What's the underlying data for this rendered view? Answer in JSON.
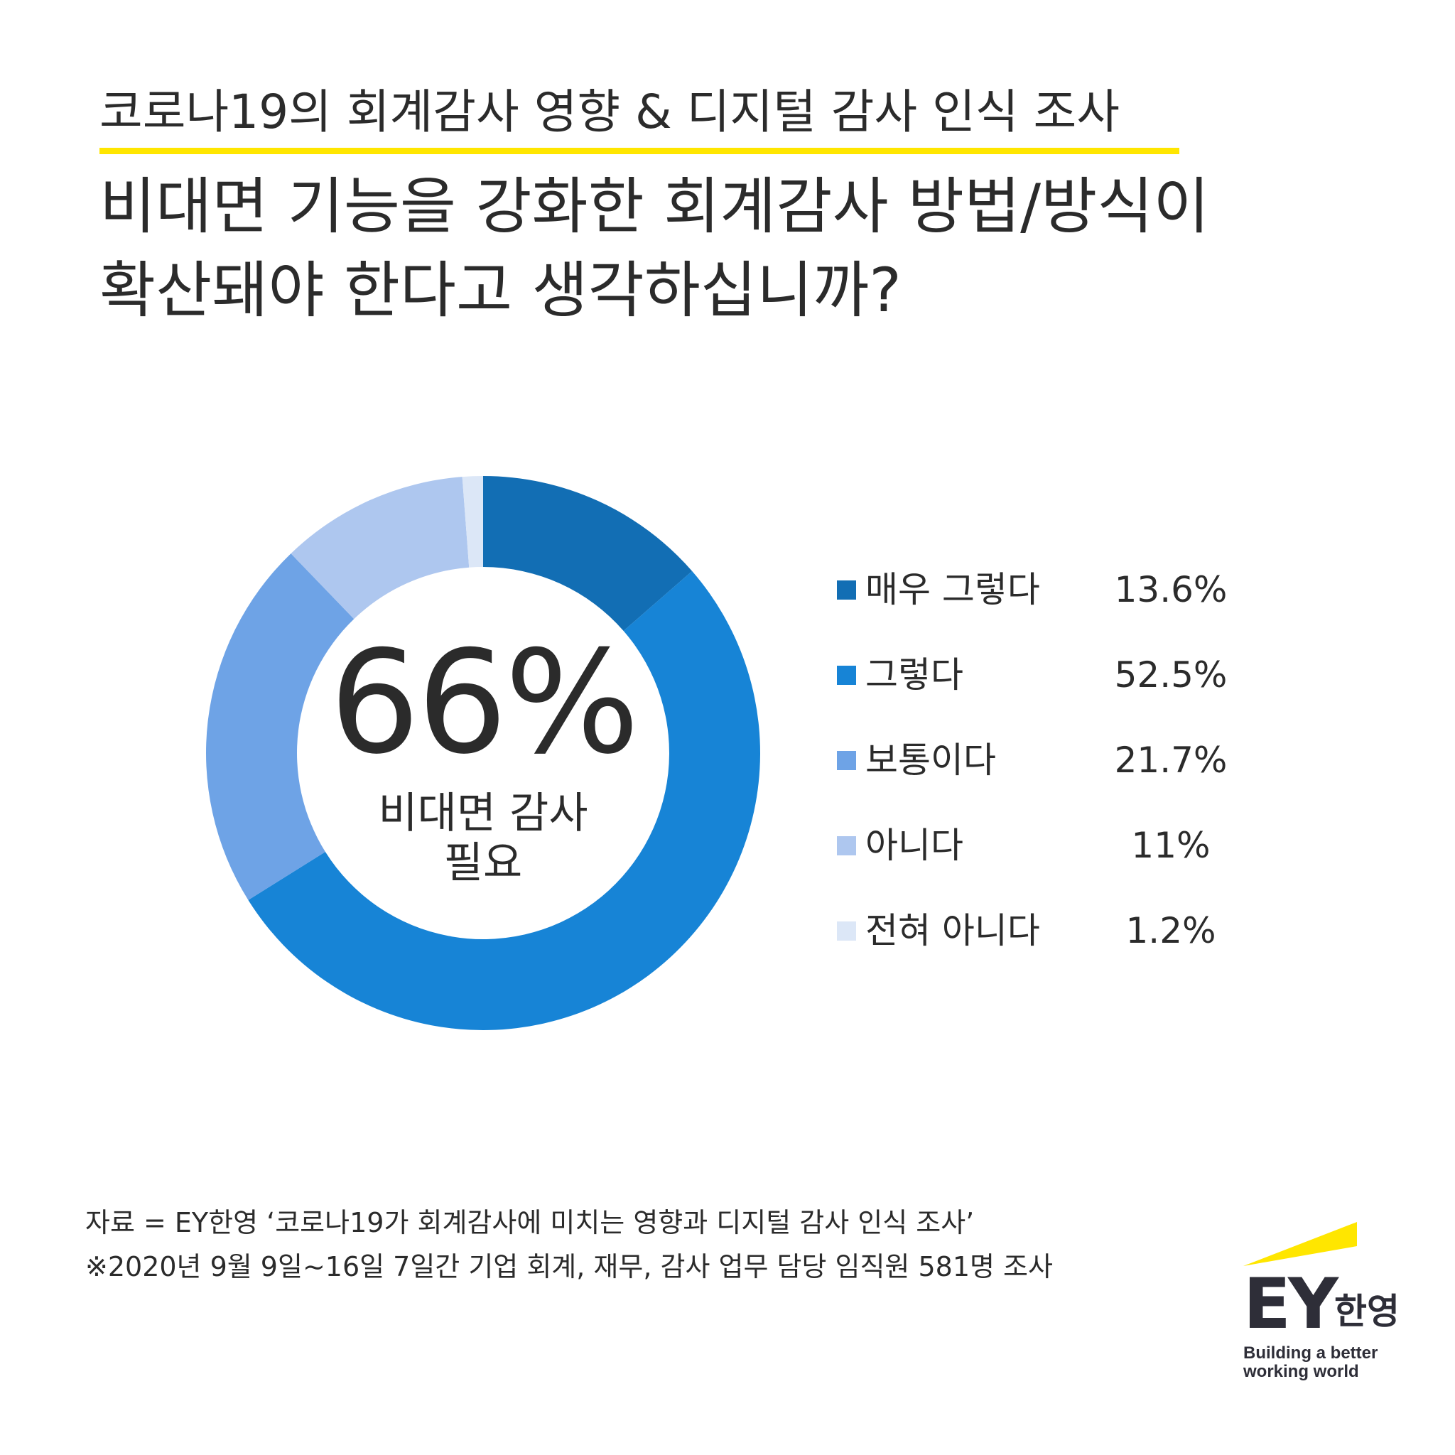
{
  "header": {
    "subtitle": "코로나19의 회계감사 영향 & 디지털 감사 인식 조사",
    "accent_color": "#ffe600",
    "question_lines": [
      "비대면 기능을 강화한 회계감사 방법/방식이",
      "확산돼야 한다고 생각하십니까?"
    ]
  },
  "center": {
    "value": "66%",
    "label_lines": [
      "비대면 감사",
      "필요"
    ]
  },
  "chart_data": {
    "type": "pie",
    "style": "donut",
    "categories": [
      "매우 그렇다",
      "그렇다",
      "보통이다",
      "아니다",
      "전혀 아니다"
    ],
    "values": [
      13.6,
      52.5,
      21.7,
      11,
      1.2
    ],
    "value_labels": [
      "13.6%",
      "52.5%",
      "21.7%",
      "11%",
      "1.2%"
    ],
    "colors": [
      "#126eb4",
      "#1784d6",
      "#6ea3e6",
      "#aec7ef",
      "#dce7f7"
    ],
    "start_angle_deg": 0,
    "direction": "clockwise",
    "legend_position": "right"
  },
  "footnotes": [
    "자료 = EY한영 ‘코로나19가 회계감사에 미치는 영향과 디지털 감사 인식 조사’",
    "※2020년 9월 9일~16일 7일간 기업 회계, 재무, 감사 업무 담당 임직원 581명 조사"
  ],
  "brand": {
    "logo_text": "EY",
    "logo_korean": "한영",
    "tagline_lines": [
      "Building a better",
      "working world"
    ],
    "beam_color": "#ffe600",
    "text_color": "#2e2e38"
  }
}
